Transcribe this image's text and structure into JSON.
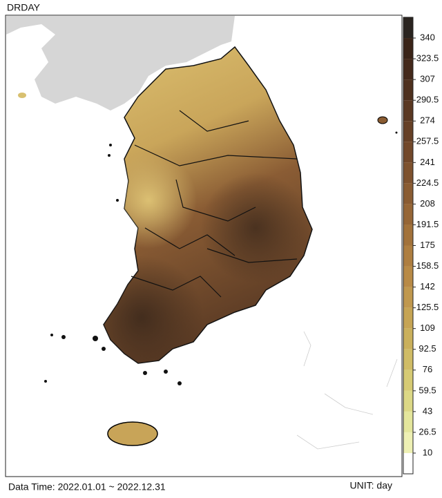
{
  "title": "DRDAY",
  "colorbar": {
    "ticks": [
      10,
      26.5,
      43,
      59.5,
      76,
      92.5,
      109,
      125.5,
      142,
      158.5,
      175,
      191.5,
      208,
      224.5,
      241,
      257.5,
      274,
      290.5,
      307,
      323.5,
      340
    ],
    "colors": [
      "#ffffff",
      "#eef0b4",
      "#e4e69c",
      "#dcd886",
      "#d6ca74",
      "#d0bc66",
      "#cab05c",
      "#c6a454",
      "#c0984e",
      "#b88a46",
      "#ae7e40",
      "#a2723a",
      "#966636",
      "#8a5c32",
      "#7e522e",
      "#72482a",
      "#664026",
      "#5a3822",
      "#4e301e",
      "#44291b",
      "#3a2418",
      "#2a2420"
    ]
  },
  "footer": {
    "data_time": "Data Time: 2022.01.01 ~ 2022.12.31",
    "unit": "UNIT: day"
  }
}
